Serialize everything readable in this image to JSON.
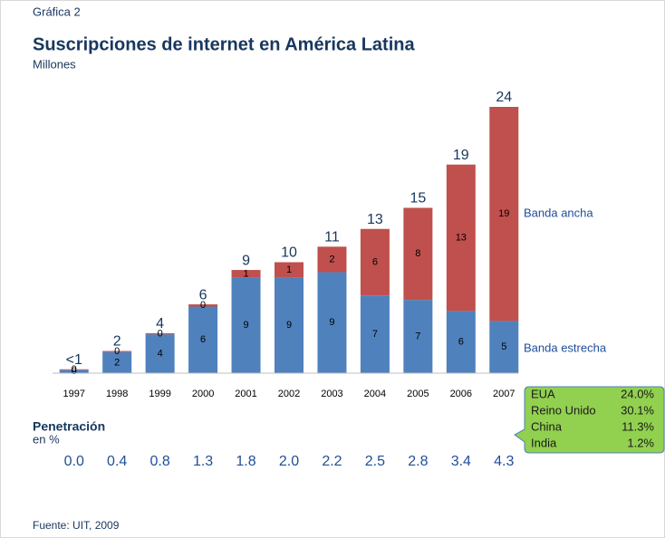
{
  "chart_data": {
    "type": "stacked_bar",
    "label": "Gráfica 2",
    "title": "Suscripciones de internet en América Latina",
    "subtitle": "Millones",
    "categories": [
      "1997",
      "1998",
      "1999",
      "2000",
      "2001",
      "2002",
      "2003",
      "2004",
      "2005",
      "2006",
      "2007"
    ],
    "series": [
      {
        "name": "Banda estrecha",
        "color": "#4f81bd",
        "values": [
          0.3,
          1.9,
          3.5,
          6.0,
          8.6,
          8.6,
          9.1,
          7.0,
          6.6,
          5.6,
          4.7
        ],
        "value_labels": [
          "0",
          "2",
          "4",
          "6",
          "9",
          "9",
          "9",
          "7",
          "7",
          "6",
          "5"
        ]
      },
      {
        "name": "Banda ancha",
        "color": "#c0504d",
        "values": [
          0.05,
          0.1,
          0.1,
          0.2,
          0.7,
          1.4,
          2.3,
          6.0,
          8.3,
          13.2,
          19.3
        ],
        "value_labels": [
          "0",
          "0",
          "0",
          "0",
          "1",
          "1",
          "2",
          "6",
          "8",
          "13",
          "19"
        ]
      }
    ],
    "total_labels": [
      "<1",
      "2",
      "4",
      "6",
      "9",
      "10",
      "11",
      "13",
      "15",
      "19",
      "24"
    ],
    "ylim": [
      0,
      25
    ],
    "penetration": {
      "title": "Penetración",
      "subtitle": "en %",
      "values": [
        0,
        0.4,
        0.8,
        1.3,
        1.8,
        2.0,
        2.2,
        2.5,
        2.8,
        3.4,
        4.3
      ],
      "value_labels": [
        "0.0",
        "0.4",
        "0.8",
        "1.3",
        "1.8",
        "2.0",
        "2.2",
        "2.5",
        "2.8",
        "3.4",
        "4.3"
      ]
    },
    "callout": [
      [
        "EUA",
        "24.0%"
      ],
      [
        "Reino Unido",
        "30.1%"
      ],
      [
        "China",
        "11.3%"
      ],
      [
        "India",
        "1.2%"
      ]
    ],
    "source": "Fuente: UIT, 2009"
  }
}
